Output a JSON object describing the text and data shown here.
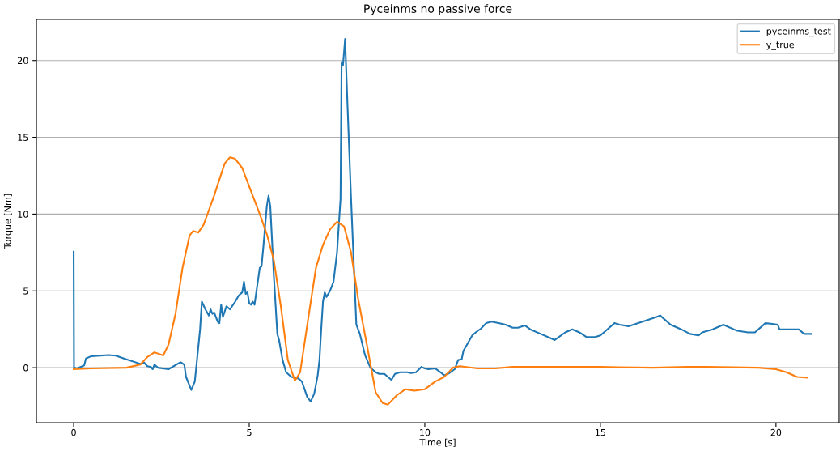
{
  "chart_data": {
    "type": "line",
    "title": "Pyceinms no passive force",
    "xlabel": "Time [s]",
    "ylabel": "Torque [Nm]",
    "xlim": [
      -1.06,
      21.8
    ],
    "ylim": [
      -3.58,
      22.67
    ],
    "xticks": [
      0,
      5,
      10,
      15,
      20
    ],
    "yticks": [
      0,
      5,
      10,
      15,
      20
    ],
    "grid": "y",
    "legend": "top right",
    "series": [
      {
        "name": "pyceinms_test",
        "color": "#1f77b4",
        "x": [
          0,
          0.01,
          0.1,
          0.3,
          0.35,
          0.5,
          1.0,
          1.2,
          1.5,
          1.9,
          2.0,
          2.1,
          2.2,
          2.25,
          2.3,
          2.4,
          2.7,
          3.0,
          3.05,
          3.15,
          3.2,
          3.35,
          3.45,
          3.6,
          3.65,
          3.75,
          3.85,
          3.9,
          3.95,
          4.0,
          4.1,
          4.15,
          4.2,
          4.25,
          4.35,
          4.45,
          4.6,
          4.7,
          4.8,
          4.85,
          4.9,
          4.95,
          5.0,
          5.05,
          5.1,
          5.15,
          5.3,
          5.35,
          5.4,
          5.5,
          5.55,
          5.6,
          5.7,
          5.8,
          5.85,
          5.95,
          6.05,
          6.2,
          6.4,
          6.5,
          6.65,
          6.75,
          6.85,
          6.95,
          7.0,
          7.05,
          7.1,
          7.15,
          7.2,
          7.3,
          7.4,
          7.5,
          7.6,
          7.63,
          7.67,
          7.73,
          7.8,
          7.9,
          8.0,
          8.05,
          8.15,
          8.3,
          8.45,
          8.6,
          8.7,
          8.85,
          8.95,
          9.05,
          9.15,
          9.3,
          9.5,
          9.6,
          9.75,
          9.9,
          10.0,
          10.1,
          10.3,
          10.45,
          10.55,
          10.7,
          10.85,
          10.95,
          11.05,
          11.1,
          11.2,
          11.35,
          11.45,
          11.6,
          11.75,
          11.9,
          12.1,
          12.3,
          12.5,
          12.65,
          12.85,
          13.0,
          13.3,
          13.6,
          13.7,
          14.0,
          14.2,
          14.4,
          14.6,
          14.85,
          15.0,
          15.2,
          15.4,
          15.55,
          15.8,
          16.2,
          16.6,
          16.7,
          17.0,
          17.3,
          17.55,
          17.8,
          17.9,
          18.2,
          18.5,
          18.9,
          19.2,
          19.4,
          19.7,
          19.9,
          20.05,
          20.1,
          20.3,
          20.5,
          20.65,
          20.8,
          21.0
        ],
        "values": [
          7.55,
          0.0,
          -0.05,
          0.15,
          0.6,
          0.75,
          0.82,
          0.78,
          0.55,
          0.25,
          0.35,
          0.1,
          0.05,
          -0.1,
          0.2,
          0.0,
          -0.1,
          0.3,
          0.35,
          0.2,
          -0.6,
          -1.45,
          -0.9,
          2.5,
          4.3,
          3.8,
          3.4,
          3.8,
          3.5,
          3.6,
          3.0,
          2.9,
          4.1,
          3.3,
          4.0,
          3.8,
          4.3,
          4.7,
          4.9,
          5.6,
          4.8,
          4.9,
          4.2,
          4.1,
          4.3,
          4.1,
          6.5,
          6.6,
          7.8,
          10.5,
          11.2,
          10.5,
          6.0,
          2.2,
          1.8,
          0.5,
          -0.3,
          -0.6,
          -0.7,
          -0.9,
          -1.9,
          -2.2,
          -1.7,
          -0.5,
          0.5,
          2.5,
          4.3,
          4.9,
          4.6,
          5.0,
          5.6,
          7.5,
          11.0,
          19.9,
          19.7,
          21.4,
          17.0,
          11.0,
          5.5,
          2.8,
          2.2,
          0.8,
          0.0,
          -0.3,
          -0.4,
          -0.4,
          -0.6,
          -0.8,
          -0.4,
          -0.3,
          -0.3,
          -0.35,
          -0.3,
          0.05,
          -0.05,
          -0.1,
          -0.05,
          -0.3,
          -0.5,
          -0.35,
          -0.1,
          0.5,
          0.55,
          1.1,
          1.5,
          2.1,
          2.3,
          2.55,
          2.9,
          3.0,
          2.9,
          2.8,
          2.6,
          2.6,
          2.75,
          2.5,
          2.2,
          1.9,
          1.8,
          2.3,
          2.5,
          2.3,
          2.0,
          2.0,
          2.1,
          2.5,
          2.9,
          2.8,
          2.7,
          3.0,
          3.3,
          3.4,
          2.8,
          2.5,
          2.2,
          2.1,
          2.3,
          2.5,
          2.8,
          2.4,
          2.3,
          2.3,
          2.9,
          2.85,
          2.8,
          2.5,
          2.5,
          2.5,
          2.5,
          2.2,
          2.2
        ]
      },
      {
        "name": "y_true",
        "color": "#ff7f0e",
        "x": [
          0,
          0.5,
          1.5,
          1.9,
          2.1,
          2.3,
          2.55,
          2.7,
          2.9,
          3.1,
          3.3,
          3.4,
          3.55,
          3.7,
          4.0,
          4.3,
          4.45,
          4.6,
          4.8,
          5.0,
          5.3,
          5.5,
          5.7,
          5.9,
          6.1,
          6.3,
          6.45,
          6.7,
          6.9,
          7.1,
          7.3,
          7.5,
          7.7,
          7.9,
          8.1,
          8.35,
          8.6,
          8.8,
          8.95,
          9.2,
          9.45,
          9.7,
          10.0,
          10.3,
          10.55,
          10.8,
          11.0,
          11.5,
          12.0,
          12.5,
          13.5,
          15.0,
          16.5,
          17.5,
          18.0,
          19.5,
          20.0,
          20.3,
          20.6,
          20.9
        ],
        "values": [
          -0.1,
          -0.05,
          0.0,
          0.2,
          0.7,
          1.0,
          0.8,
          1.5,
          3.5,
          6.5,
          8.6,
          8.9,
          8.8,
          9.3,
          11.2,
          13.3,
          13.7,
          13.6,
          13.0,
          11.8,
          10.0,
          8.7,
          7.0,
          4.0,
          0.5,
          -0.85,
          -0.3,
          3.5,
          6.5,
          8.0,
          9.0,
          9.5,
          9.2,
          7.5,
          4.5,
          1.5,
          -1.6,
          -2.3,
          -2.4,
          -1.8,
          -1.4,
          -1.5,
          -1.4,
          -0.9,
          -0.6,
          0.0,
          0.1,
          -0.05,
          -0.05,
          0.05,
          0.05,
          0.05,
          0.0,
          0.05,
          0.05,
          0.0,
          -0.1,
          -0.3,
          -0.6,
          -0.65
        ]
      }
    ]
  }
}
